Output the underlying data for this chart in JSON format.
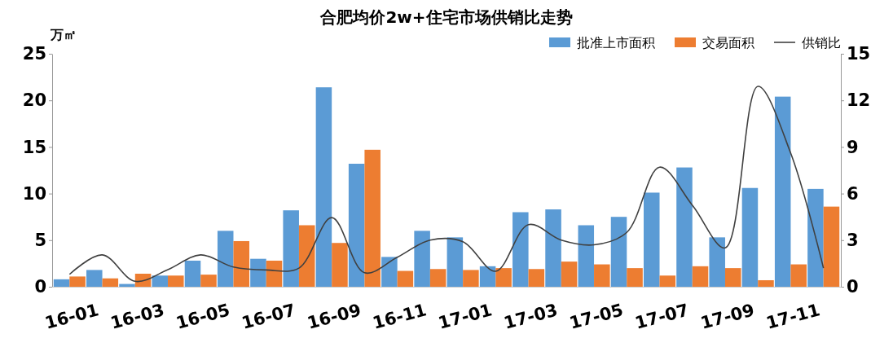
{
  "chart_data": {
    "type": "bar",
    "title": "合肥均价2w+住宅市场供销比走势",
    "ylabel": "万㎡",
    "categories": [
      "16-01",
      null,
      "16-03",
      null,
      "16-05",
      null,
      "16-07",
      null,
      "16-09",
      null,
      "16-11",
      null,
      "17-01",
      null,
      "17-03",
      null,
      "17-05",
      null,
      "17-07",
      null,
      "17-09",
      null,
      "17-11",
      null
    ],
    "series": [
      {
        "name": "批准上市面积",
        "color": "#5b9bd5",
        "values": [
          0.8,
          1.8,
          0.3,
          1.2,
          2.8,
          6.0,
          3.0,
          8.2,
          21.4,
          13.2,
          3.2,
          6.0,
          5.3,
          2.2,
          8.0,
          8.3,
          6.6,
          7.5,
          10.1,
          12.8,
          5.3,
          10.6,
          20.4,
          10.5
        ]
      },
      {
        "name": "交易面积",
        "color": "#ed7d31",
        "values": [
          1.1,
          0.9,
          1.4,
          1.2,
          1.3,
          4.9,
          2.8,
          6.6,
          4.7,
          14.7,
          1.7,
          1.9,
          1.8,
          2.0,
          1.9,
          2.7,
          2.4,
          2.0,
          1.2,
          2.2,
          2.0,
          0.7,
          2.4,
          8.6
        ]
      },
      {
        "name": "供销比",
        "type": "line",
        "axis": "y2",
        "color": "#404040",
        "values": [
          0.8,
          2.05,
          0.35,
          1.1,
          2.05,
          1.27,
          1.08,
          1.2,
          4.45,
          0.9,
          1.9,
          3.0,
          2.9,
          1.0,
          4.0,
          3.0,
          2.7,
          3.5,
          7.7,
          5.25,
          2.5,
          12.9,
          8.6,
          1.2
        ]
      }
    ],
    "ylim": [
      0,
      25
    ],
    "yticks": [
      0,
      5,
      10,
      15,
      20,
      25
    ],
    "y2lim": [
      0,
      15
    ],
    "y2ticks": [
      0,
      3,
      6,
      9,
      12,
      15
    ],
    "legend": "top right",
    "grid": false,
    "marker": "none",
    "line_style": "solid"
  }
}
